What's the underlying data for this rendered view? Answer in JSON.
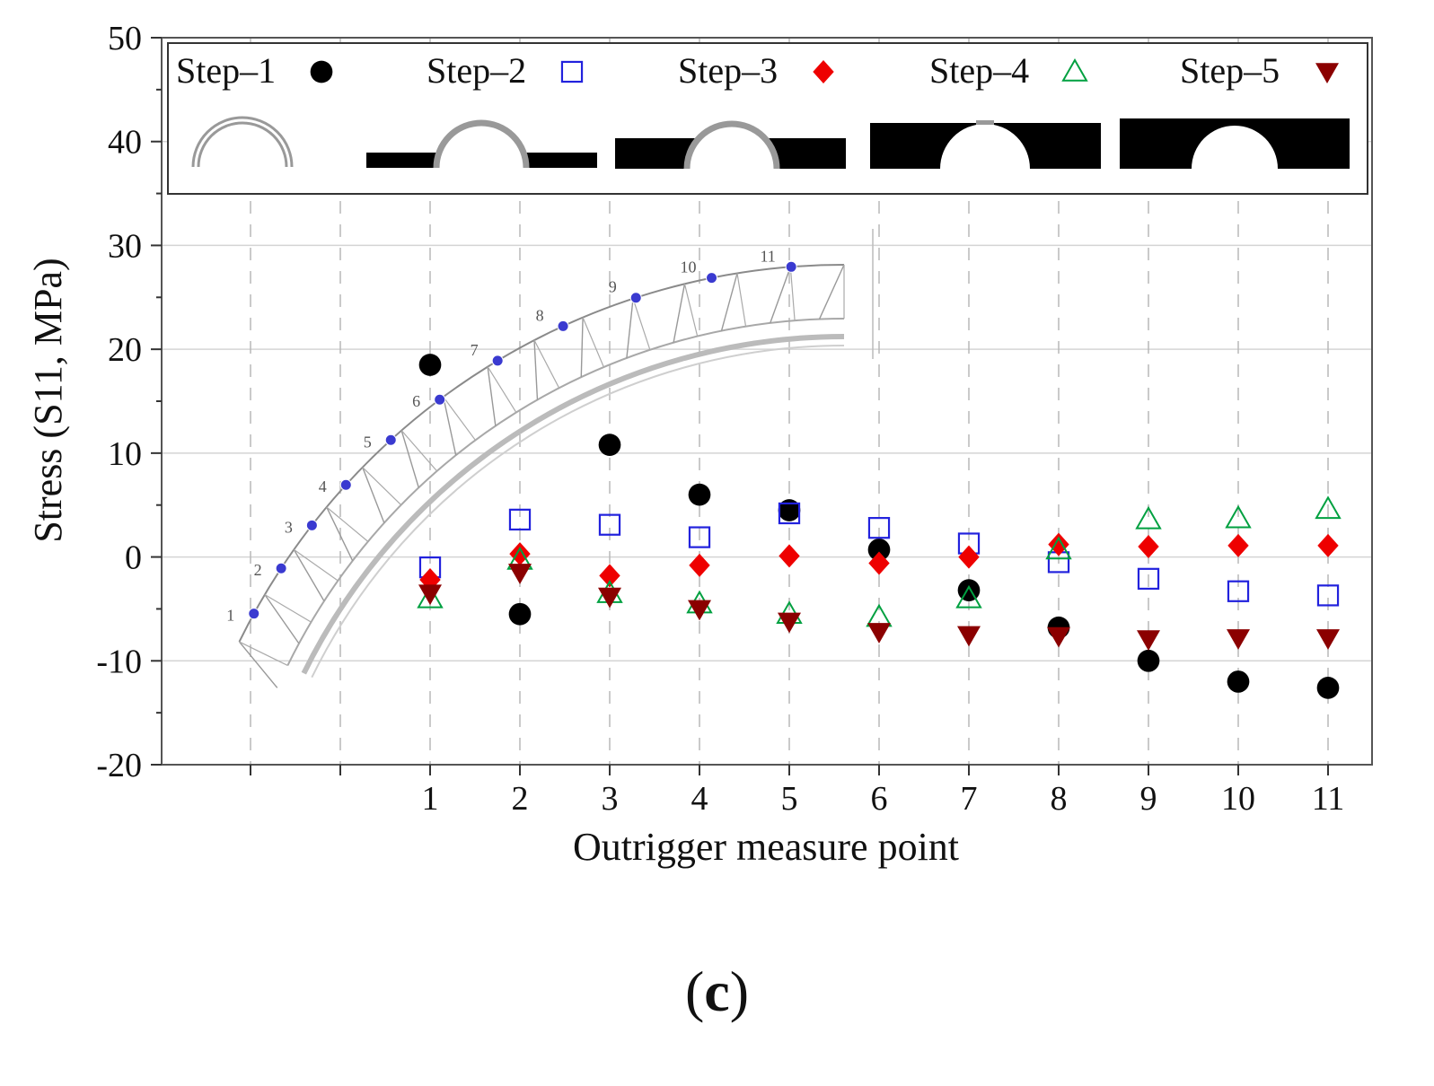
{
  "chart_data": {
    "type": "scatter",
    "xlabel": "Outrigger measure point",
    "ylabel": "Stress (S11, MPa)",
    "xlim": [
      -2,
      11.5
    ],
    "ylim": [
      -20,
      50
    ],
    "x_ticks": [
      1,
      2,
      3,
      4,
      5,
      6,
      7,
      8,
      9,
      10,
      11
    ],
    "x_tick_labels": [
      "1",
      "2",
      "3",
      "4",
      "5",
      "6",
      "7",
      "8",
      "9",
      "10",
      "11"
    ],
    "y_ticks": [
      -20,
      -10,
      0,
      10,
      20,
      30,
      40,
      50
    ],
    "y_tick_labels": [
      "-20",
      "-10",
      "0",
      "10",
      "20",
      "30",
      "40",
      "50"
    ],
    "grid": true,
    "legend_position": "top",
    "x": [
      1,
      2,
      3,
      4,
      5,
      6,
      7,
      8,
      9,
      10,
      11
    ],
    "series": [
      {
        "name": "Step–1",
        "marker": "filled-circle",
        "color": "#000000",
        "values": [
          18.5,
          -5.5,
          10.8,
          6.0,
          4.5,
          0.7,
          -3.2,
          -6.8,
          -10.0,
          -12.0,
          -12.6
        ]
      },
      {
        "name": "Step–2",
        "marker": "open-square",
        "color": "#2222dd",
        "values": [
          -1.0,
          3.6,
          3.1,
          1.9,
          4.2,
          2.8,
          1.3,
          -0.5,
          -2.1,
          -3.3,
          -3.7
        ]
      },
      {
        "name": "Step–3",
        "marker": "filled-diamond",
        "color": "#ee0000",
        "values": [
          -2.2,
          0.3,
          -1.8,
          -0.8,
          0.1,
          -0.6,
          0.0,
          1.2,
          1.0,
          1.1,
          1.1
        ]
      },
      {
        "name": "Step–4",
        "marker": "open-triangle-up",
        "color": "#00a040",
        "values": [
          -4.0,
          -0.3,
          -3.5,
          -4.5,
          -5.5,
          -5.8,
          -4.0,
          0.7,
          3.6,
          3.7,
          4.6
        ]
      },
      {
        "name": "Step–5",
        "marker": "filled-triangle-down",
        "color": "#8b0000",
        "values": [
          -3.5,
          -1.5,
          -3.8,
          -5.0,
          -6.2,
          -7.2,
          -7.5,
          -7.6,
          -7.9,
          -7.8,
          -7.8
        ]
      }
    ],
    "inset_point_labels": [
      "1",
      "2",
      "3",
      "4",
      "5",
      "6",
      "7",
      "8",
      "9",
      "10",
      "11"
    ]
  },
  "figure_label": {
    "open": "(",
    "letter": "c",
    "close": ")"
  }
}
